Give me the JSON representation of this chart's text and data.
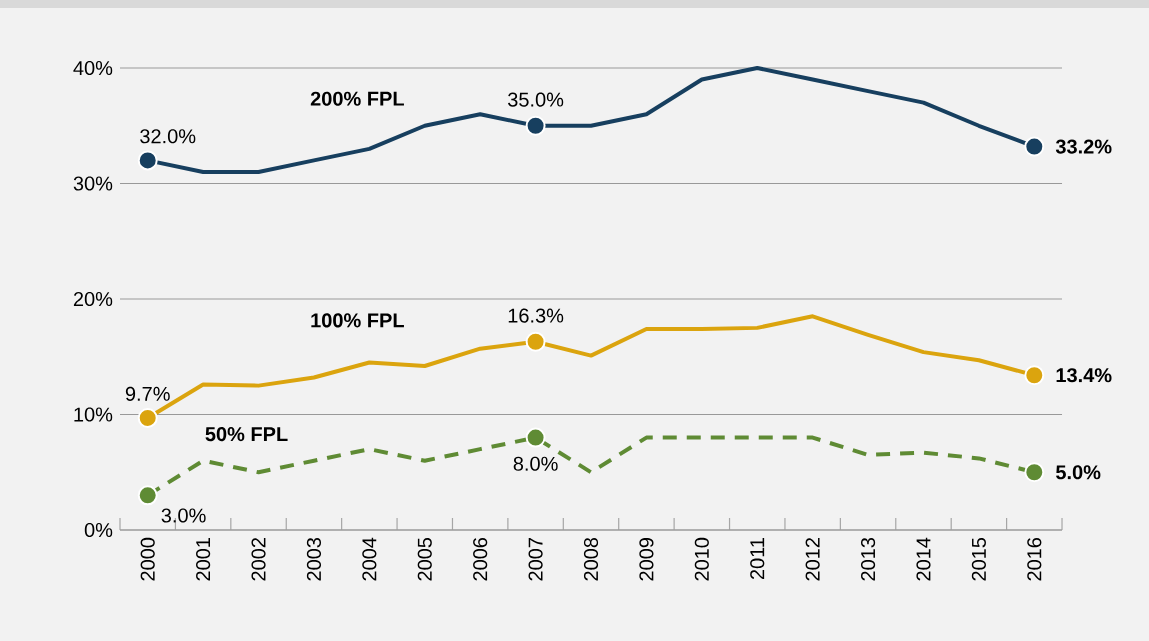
{
  "chart_data": {
    "type": "line",
    "categories": [
      "2000",
      "2001",
      "2002",
      "2003",
      "2004",
      "2005",
      "2006",
      "2007",
      "2008",
      "2009",
      "2010",
      "2011",
      "2012",
      "2013",
      "2014",
      "2015",
      "2016"
    ],
    "ylim": [
      0,
      40
    ],
    "yticks": [
      {
        "value": 0,
        "label": "0%"
      },
      {
        "value": 10,
        "label": "10%"
      },
      {
        "value": 20,
        "label": "20%"
      },
      {
        "value": 30,
        "label": "30%"
      },
      {
        "value": 40,
        "label": "40%"
      }
    ],
    "grid": "y",
    "series": [
      {
        "name": "200% FPL",
        "color": "#173f5f",
        "line_style": "solid",
        "values": [
          32.0,
          31,
          31,
          32,
          33,
          35,
          36,
          35.0,
          35,
          36,
          39,
          40,
          39,
          38,
          37,
          35,
          33.2
        ],
        "value_labels": [
          "32.0%",
          null,
          null,
          null,
          null,
          null,
          null,
          "35.0%",
          null,
          null,
          null,
          null,
          null,
          null,
          null,
          null,
          "33.2%"
        ]
      },
      {
        "name": "100% FPL",
        "color": "#dba40e",
        "line_style": "solid",
        "values": [
          9.7,
          12.6,
          12.5,
          13.2,
          14.5,
          14.2,
          15.7,
          16.3,
          15.1,
          17.4,
          17.4,
          17.5,
          18.5,
          16.9,
          15.4,
          14.7,
          13.4
        ],
        "value_labels": [
          "9.7%",
          null,
          null,
          null,
          null,
          null,
          null,
          "16.3%",
          null,
          null,
          null,
          null,
          null,
          null,
          null,
          null,
          "13.4%"
        ]
      },
      {
        "name": "50% FPL",
        "color": "#5f8b34",
        "line_style": "dashed",
        "values": [
          3.0,
          6.0,
          5.0,
          6.0,
          7.0,
          6.0,
          7.0,
          8.0,
          5.0,
          8.0,
          8,
          8,
          8,
          6.5,
          6.7,
          6.2,
          5.0
        ],
        "value_labels": [
          "3.0%",
          null,
          null,
          null,
          null,
          null,
          null,
          "8.0%",
          null,
          null,
          null,
          null,
          null,
          null,
          null,
          null,
          "5.0%"
        ]
      }
    ]
  }
}
